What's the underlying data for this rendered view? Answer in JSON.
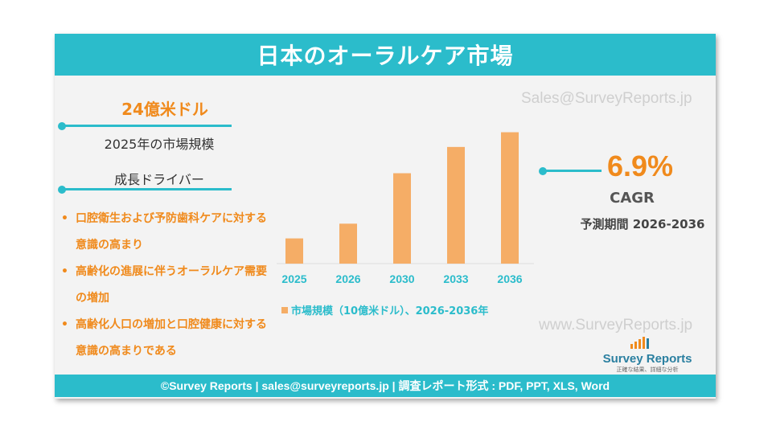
{
  "title": "日本のオーラルケア市場",
  "market_value": "24億米ドル",
  "market_label": "2025年の市場規模",
  "drivers_title": "成長ドライバー",
  "drivers": [
    "口腔衛生および予防歯科ケアに対する意識の高まり",
    "高齢化の進展に伴うオーラルケア需要の増加",
    "高齢化人口の増加と口腔健康に対する意識の高まりである"
  ],
  "cagr": {
    "value": "6.9%",
    "label": "CAGR",
    "forecast": "予測期間 2026-2036"
  },
  "watermark_top": "Sales@SurveyReports.jp",
  "watermark_bottom": "www.SurveyReports.jp",
  "logo": {
    "name": "Survey Reports",
    "tagline": "正確な結果、詳細な分析"
  },
  "footer": "©Survey Reports | sales@surveyreports.jp |  調査レポート形式 : PDF, PPT, XLS, Word",
  "colors": {
    "accent": "#2bbccb",
    "bar": "#f5ad66",
    "highlight": "#f08a1c"
  },
  "chart_data": {
    "type": "bar",
    "categories": [
      "2025",
      "2026",
      "2030",
      "2033",
      "2036"
    ],
    "values": [
      2.4,
      3.8,
      8.6,
      11.1,
      12.5
    ],
    "legend": "市場規模（10億米ドル）、2026-2036年",
    "ylim": [
      0,
      13
    ],
    "grid": false,
    "legend_position": "bottom"
  }
}
